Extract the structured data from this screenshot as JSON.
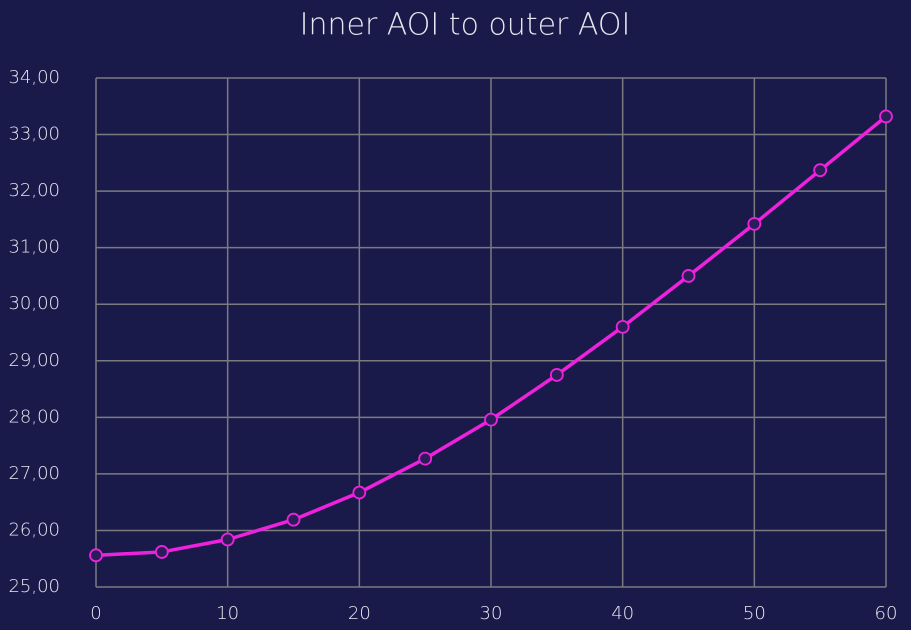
{
  "chart_data": {
    "type": "line",
    "title": "Inner AOI to outer AOI",
    "x": [
      0,
      5,
      10,
      15,
      20,
      25,
      30,
      35,
      40,
      45,
      50,
      55,
      60
    ],
    "series": [
      {
        "name": null,
        "color": "#ee22dd",
        "values": [
          25.56,
          25.62,
          25.84,
          26.19,
          26.67,
          27.27,
          27.96,
          28.75,
          29.6,
          30.5,
          31.42,
          32.37,
          33.32
        ]
      }
    ],
    "xlim": [
      0,
      60
    ],
    "xticks": [
      0,
      10,
      20,
      30,
      40,
      50,
      60
    ],
    "ylim": [
      25,
      34
    ],
    "yticks": [
      {
        "value": 25,
        "label": "25,00"
      },
      {
        "value": 26,
        "label": "26,00"
      },
      {
        "value": 27,
        "label": "27,00"
      },
      {
        "value": 28,
        "label": "28,00"
      },
      {
        "value": 29,
        "label": "29,00"
      },
      {
        "value": 30,
        "label": "30,00"
      },
      {
        "value": 31,
        "label": "31,00"
      },
      {
        "value": 32,
        "label": "32,00"
      },
      {
        "value": 33,
        "label": "33,00"
      },
      {
        "value": 34,
        "label": "34,00"
      }
    ],
    "grid": true
  }
}
